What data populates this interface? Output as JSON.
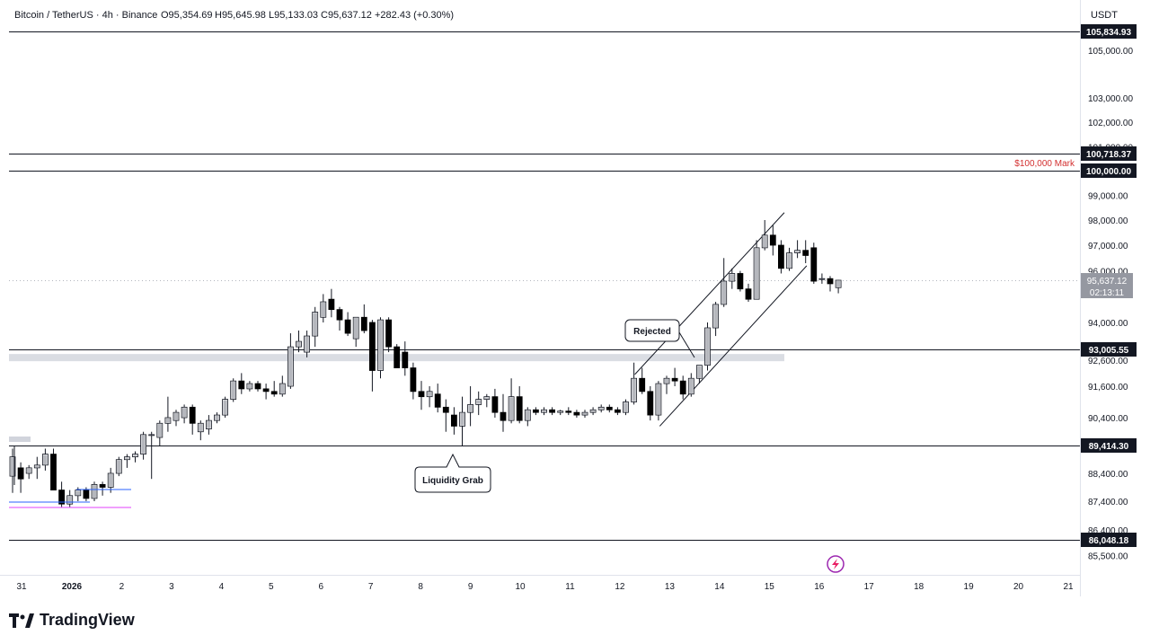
{
  "header": {
    "symbol": "Bitcoin / TetherUS · 4h · Binance",
    "open": "O95,354.69",
    "high": "H95,645.98",
    "low": "L95,133.03",
    "close": "C95,637.12",
    "change": "+282.43 (+0.30%)"
  },
  "currency": "USDT",
  "brand": {
    "name": "TradingView"
  },
  "chart_data": {
    "type": "candlestick",
    "ylim": [
      85000,
      106500
    ],
    "y_ticks": [
      {
        "v": 105000,
        "label": "105,000.00"
      },
      {
        "v": 103000,
        "label": "103,000.00"
      },
      {
        "v": 102000,
        "label": "102,000.00"
      },
      {
        "v": 101000,
        "label": "101,000.00"
      },
      {
        "v": 99000,
        "label": "99,000.00"
      },
      {
        "v": 98000,
        "label": "98,000.00"
      },
      {
        "v": 97000,
        "label": "97,000.00"
      },
      {
        "v": 96000,
        "label": "96,000.00"
      },
      {
        "v": 94000,
        "label": "94,000.00"
      },
      {
        "v": 92600,
        "label": "92,600.00"
      },
      {
        "v": 91600,
        "label": "91,600.00"
      },
      {
        "v": 90400,
        "label": "90,400.00"
      },
      {
        "v": 88400,
        "label": "88,400.00"
      },
      {
        "v": 87400,
        "label": "87,400.00"
      },
      {
        "v": 86400,
        "label": "86,400.00"
      },
      {
        "v": 85500,
        "label": "85,500.00"
      }
    ],
    "x_ticks": [
      {
        "d": -1,
        "label": "31"
      },
      {
        "d": 0,
        "label": "2026"
      },
      {
        "d": 1,
        "label": "2"
      },
      {
        "d": 2,
        "label": "3"
      },
      {
        "d": 3,
        "label": "4"
      },
      {
        "d": 4,
        "label": "5"
      },
      {
        "d": 5,
        "label": "6"
      },
      {
        "d": 6,
        "label": "7"
      },
      {
        "d": 7,
        "label": "8"
      },
      {
        "d": 8,
        "label": "9"
      },
      {
        "d": 9,
        "label": "10"
      },
      {
        "d": 10,
        "label": "11"
      },
      {
        "d": 11,
        "label": "12"
      },
      {
        "d": 12,
        "label": "13"
      },
      {
        "d": 13,
        "label": "14"
      },
      {
        "d": 14,
        "label": "15"
      },
      {
        "d": 15,
        "label": "16"
      },
      {
        "d": 16,
        "label": "17"
      },
      {
        "d": 17,
        "label": "18"
      },
      {
        "d": 18,
        "label": "19"
      },
      {
        "d": 19,
        "label": "20"
      },
      {
        "d": 20,
        "label": "21"
      }
    ],
    "levels": [
      {
        "price": 105834.93,
        "label": "105,834.93"
      },
      {
        "price": 100718.37,
        "label": "100,718.37"
      },
      {
        "price": 100000.0,
        "label": "100,000.00"
      },
      {
        "price": 93005.55,
        "label": "93,005.55"
      },
      {
        "price": 89414.3,
        "label": "89,414.30"
      },
      {
        "price": 86048.18,
        "label": "86,048.18"
      }
    ],
    "last_price": {
      "price": 95637.12,
      "label": "95,637.12",
      "countdown": "02:13:11"
    },
    "zone": {
      "low": 92750,
      "high": 93000
    },
    "annotations": [
      {
        "text": "Rejected",
        "price": 94600,
        "d": 12.3
      },
      {
        "text": "Liquidity Grab",
        "price": 88300,
        "d": 8.3
      },
      {
        "text": "$100,000 Mark",
        "price": 100300,
        "d": 19.7
      }
    ],
    "channel": {
      "upper": [
        {
          "d": 11.3,
          "p": 92050
        },
        {
          "d": 14.3,
          "p": 98300
        }
      ],
      "lower": [
        {
          "d": 11.8,
          "p": 90100
        },
        {
          "d": 14.75,
          "p": 96200
        }
      ]
    },
    "candles": [
      {
        "o": 88300,
        "h": 89300,
        "l": 87700,
        "c": 89000
      },
      {
        "o": 88600,
        "h": 88800,
        "l": 87700,
        "c": 88200
      },
      {
        "o": 88400,
        "h": 88700,
        "l": 88200,
        "c": 88600
      },
      {
        "o": 88600,
        "h": 89000,
        "l": 88200,
        "c": 88700
      },
      {
        "o": 88700,
        "h": 89300,
        "l": 88500,
        "c": 89100
      },
      {
        "o": 89100,
        "h": 89300,
        "l": 87800,
        "c": 87800
      },
      {
        "o": 87800,
        "h": 88100,
        "l": 87200,
        "c": 87300
      },
      {
        "o": 87300,
        "h": 87800,
        "l": 87200,
        "c": 87600
      },
      {
        "o": 87600,
        "h": 87900,
        "l": 87400,
        "c": 87800
      },
      {
        "o": 87800,
        "h": 87900,
        "l": 87400,
        "c": 87500
      },
      {
        "o": 87500,
        "h": 88100,
        "l": 87400,
        "c": 88000
      },
      {
        "o": 88000,
        "h": 88100,
        "l": 87600,
        "c": 87900
      },
      {
        "o": 87900,
        "h": 88600,
        "l": 87700,
        "c": 88400
      },
      {
        "o": 88400,
        "h": 89000,
        "l": 88300,
        "c": 88900
      },
      {
        "o": 88900,
        "h": 89100,
        "l": 88600,
        "c": 89000
      },
      {
        "o": 89000,
        "h": 89200,
        "l": 88800,
        "c": 89100
      },
      {
        "o": 89100,
        "h": 89900,
        "l": 88900,
        "c": 89800
      },
      {
        "o": 89800,
        "h": 89900,
        "l": 88200,
        "c": 89800
      },
      {
        "o": 89700,
        "h": 90300,
        "l": 89400,
        "c": 90200
      },
      {
        "o": 90200,
        "h": 91200,
        "l": 89900,
        "c": 90400
      },
      {
        "o": 90300,
        "h": 90700,
        "l": 90100,
        "c": 90600
      },
      {
        "o": 90400,
        "h": 90900,
        "l": 90200,
        "c": 90800
      },
      {
        "o": 90800,
        "h": 90900,
        "l": 89800,
        "c": 90200
      },
      {
        "o": 89900,
        "h": 90300,
        "l": 89600,
        "c": 90200
      },
      {
        "o": 90000,
        "h": 90500,
        "l": 89800,
        "c": 90300
      },
      {
        "o": 90300,
        "h": 90600,
        "l": 90200,
        "c": 90500
      },
      {
        "o": 90500,
        "h": 91200,
        "l": 90400,
        "c": 91100
      },
      {
        "o": 91100,
        "h": 91900,
        "l": 91000,
        "c": 91800
      },
      {
        "o": 91800,
        "h": 92100,
        "l": 91300,
        "c": 91500
      },
      {
        "o": 91500,
        "h": 91800,
        "l": 91400,
        "c": 91700
      },
      {
        "o": 91700,
        "h": 91800,
        "l": 91400,
        "c": 91500
      },
      {
        "o": 91500,
        "h": 91700,
        "l": 91100,
        "c": 91400
      },
      {
        "o": 91400,
        "h": 91800,
        "l": 91200,
        "c": 91300
      },
      {
        "o": 91300,
        "h": 92000,
        "l": 91200,
        "c": 91700
      },
      {
        "o": 91600,
        "h": 93600,
        "l": 91500,
        "c": 93100
      },
      {
        "o": 93100,
        "h": 93700,
        "l": 92900,
        "c": 93300
      },
      {
        "o": 92900,
        "h": 93700,
        "l": 92700,
        "c": 93500
      },
      {
        "o": 93500,
        "h": 94600,
        "l": 93100,
        "c": 94400
      },
      {
        "o": 94200,
        "h": 95100,
        "l": 94000,
        "c": 94800
      },
      {
        "o": 94900,
        "h": 95300,
        "l": 94200,
        "c": 94500
      },
      {
        "o": 94500,
        "h": 94600,
        "l": 93700,
        "c": 94100
      },
      {
        "o": 94100,
        "h": 94400,
        "l": 93500,
        "c": 93600
      },
      {
        "o": 93400,
        "h": 94200,
        "l": 93100,
        "c": 94200
      },
      {
        "o": 94200,
        "h": 94700,
        "l": 93600,
        "c": 93700
      },
      {
        "o": 94000,
        "h": 94100,
        "l": 91400,
        "c": 92200
      },
      {
        "o": 92200,
        "h": 94200,
        "l": 91900,
        "c": 94100
      },
      {
        "o": 94100,
        "h": 94200,
        "l": 92900,
        "c": 93100
      },
      {
        "o": 93100,
        "h": 93200,
        "l": 92500,
        "c": 92300
      },
      {
        "o": 92900,
        "h": 93300,
        "l": 92000,
        "c": 92300
      },
      {
        "o": 92300,
        "h": 92500,
        "l": 91100,
        "c": 91400
      },
      {
        "o": 91400,
        "h": 91800,
        "l": 90700,
        "c": 91200
      },
      {
        "o": 91200,
        "h": 91600,
        "l": 90800,
        "c": 91400
      },
      {
        "o": 91300,
        "h": 91700,
        "l": 90600,
        "c": 90800
      },
      {
        "o": 90800,
        "h": 91100,
        "l": 89900,
        "c": 90600
      },
      {
        "o": 90500,
        "h": 90800,
        "l": 89800,
        "c": 90100
      },
      {
        "o": 90100,
        "h": 91200,
        "l": 89400,
        "c": 90600
      },
      {
        "o": 90600,
        "h": 91600,
        "l": 90100,
        "c": 90900
      },
      {
        "o": 90900,
        "h": 91400,
        "l": 90500,
        "c": 91100
      },
      {
        "o": 91100,
        "h": 91300,
        "l": 90800,
        "c": 91200
      },
      {
        "o": 91200,
        "h": 91500,
        "l": 90400,
        "c": 90600
      },
      {
        "o": 90600,
        "h": 91300,
        "l": 89900,
        "c": 90300
      },
      {
        "o": 90300,
        "h": 91900,
        "l": 90200,
        "c": 91200
      },
      {
        "o": 91200,
        "h": 91600,
        "l": 90200,
        "c": 90300
      },
      {
        "o": 90300,
        "h": 90800,
        "l": 90100,
        "c": 90700
      },
      {
        "o": 90700,
        "h": 90800,
        "l": 90500,
        "c": 90600
      },
      {
        "o": 90600,
        "h": 90800,
        "l": 90500,
        "c": 90700
      },
      {
        "o": 90700,
        "h": 90800,
        "l": 90500,
        "c": 90600
      },
      {
        "o": 90600,
        "h": 90700,
        "l": 90500,
        "c": 90650
      },
      {
        "o": 90650,
        "h": 90800,
        "l": 90500,
        "c": 90600
      },
      {
        "o": 90600,
        "h": 90700,
        "l": 90400,
        "c": 90500
      },
      {
        "o": 90500,
        "h": 90700,
        "l": 90400,
        "c": 90600
      },
      {
        "o": 90600,
        "h": 90800,
        "l": 90500,
        "c": 90700
      },
      {
        "o": 90700,
        "h": 90900,
        "l": 90600,
        "c": 90800
      },
      {
        "o": 90800,
        "h": 90900,
        "l": 90600,
        "c": 90700
      },
      {
        "o": 90700,
        "h": 90800,
        "l": 90500,
        "c": 90600
      },
      {
        "o": 90600,
        "h": 91100,
        "l": 90500,
        "c": 91000
      },
      {
        "o": 91000,
        "h": 92500,
        "l": 90900,
        "c": 91900
      },
      {
        "o": 91900,
        "h": 92300,
        "l": 91300,
        "c": 91400
      },
      {
        "o": 91400,
        "h": 91600,
        "l": 90300,
        "c": 90500
      },
      {
        "o": 90500,
        "h": 91800,
        "l": 90300,
        "c": 91700
      },
      {
        "o": 91700,
        "h": 92000,
        "l": 91300,
        "c": 91900
      },
      {
        "o": 91900,
        "h": 92300,
        "l": 91600,
        "c": 91800
      },
      {
        "o": 91800,
        "h": 92000,
        "l": 91100,
        "c": 91300
      },
      {
        "o": 91300,
        "h": 92100,
        "l": 91200,
        "c": 91900
      },
      {
        "o": 91900,
        "h": 92400,
        "l": 91700,
        "c": 92400
      },
      {
        "o": 92400,
        "h": 94000,
        "l": 92200,
        "c": 93800
      },
      {
        "o": 93800,
        "h": 94800,
        "l": 93500,
        "c": 94700
      },
      {
        "o": 94700,
        "h": 96500,
        "l": 94600,
        "c": 95600
      },
      {
        "o": 95600,
        "h": 96100,
        "l": 95300,
        "c": 95900
      },
      {
        "o": 95900,
        "h": 96000,
        "l": 95200,
        "c": 95300
      },
      {
        "o": 95300,
        "h": 95500,
        "l": 94800,
        "c": 94900
      },
      {
        "o": 94900,
        "h": 97200,
        "l": 94900,
        "c": 96900
      },
      {
        "o": 96900,
        "h": 98000,
        "l": 96800,
        "c": 97400
      },
      {
        "o": 97400,
        "h": 97800,
        "l": 96600,
        "c": 97000
      },
      {
        "o": 97000,
        "h": 97200,
        "l": 95900,
        "c": 96100
      },
      {
        "o": 96100,
        "h": 96900,
        "l": 96000,
        "c": 96700
      },
      {
        "o": 96700,
        "h": 97200,
        "l": 96500,
        "c": 96800
      },
      {
        "o": 96800,
        "h": 97200,
        "l": 96300,
        "c": 96600
      },
      {
        "o": 96900,
        "h": 97100,
        "l": 95500,
        "c": 95600
      },
      {
        "o": 95700,
        "h": 95900,
        "l": 95500,
        "c": 95700
      },
      {
        "o": 95700,
        "h": 95800,
        "l": 95200,
        "c": 95500
      },
      {
        "o": 95350,
        "h": 95650,
        "l": 95130,
        "c": 95637
      }
    ]
  }
}
